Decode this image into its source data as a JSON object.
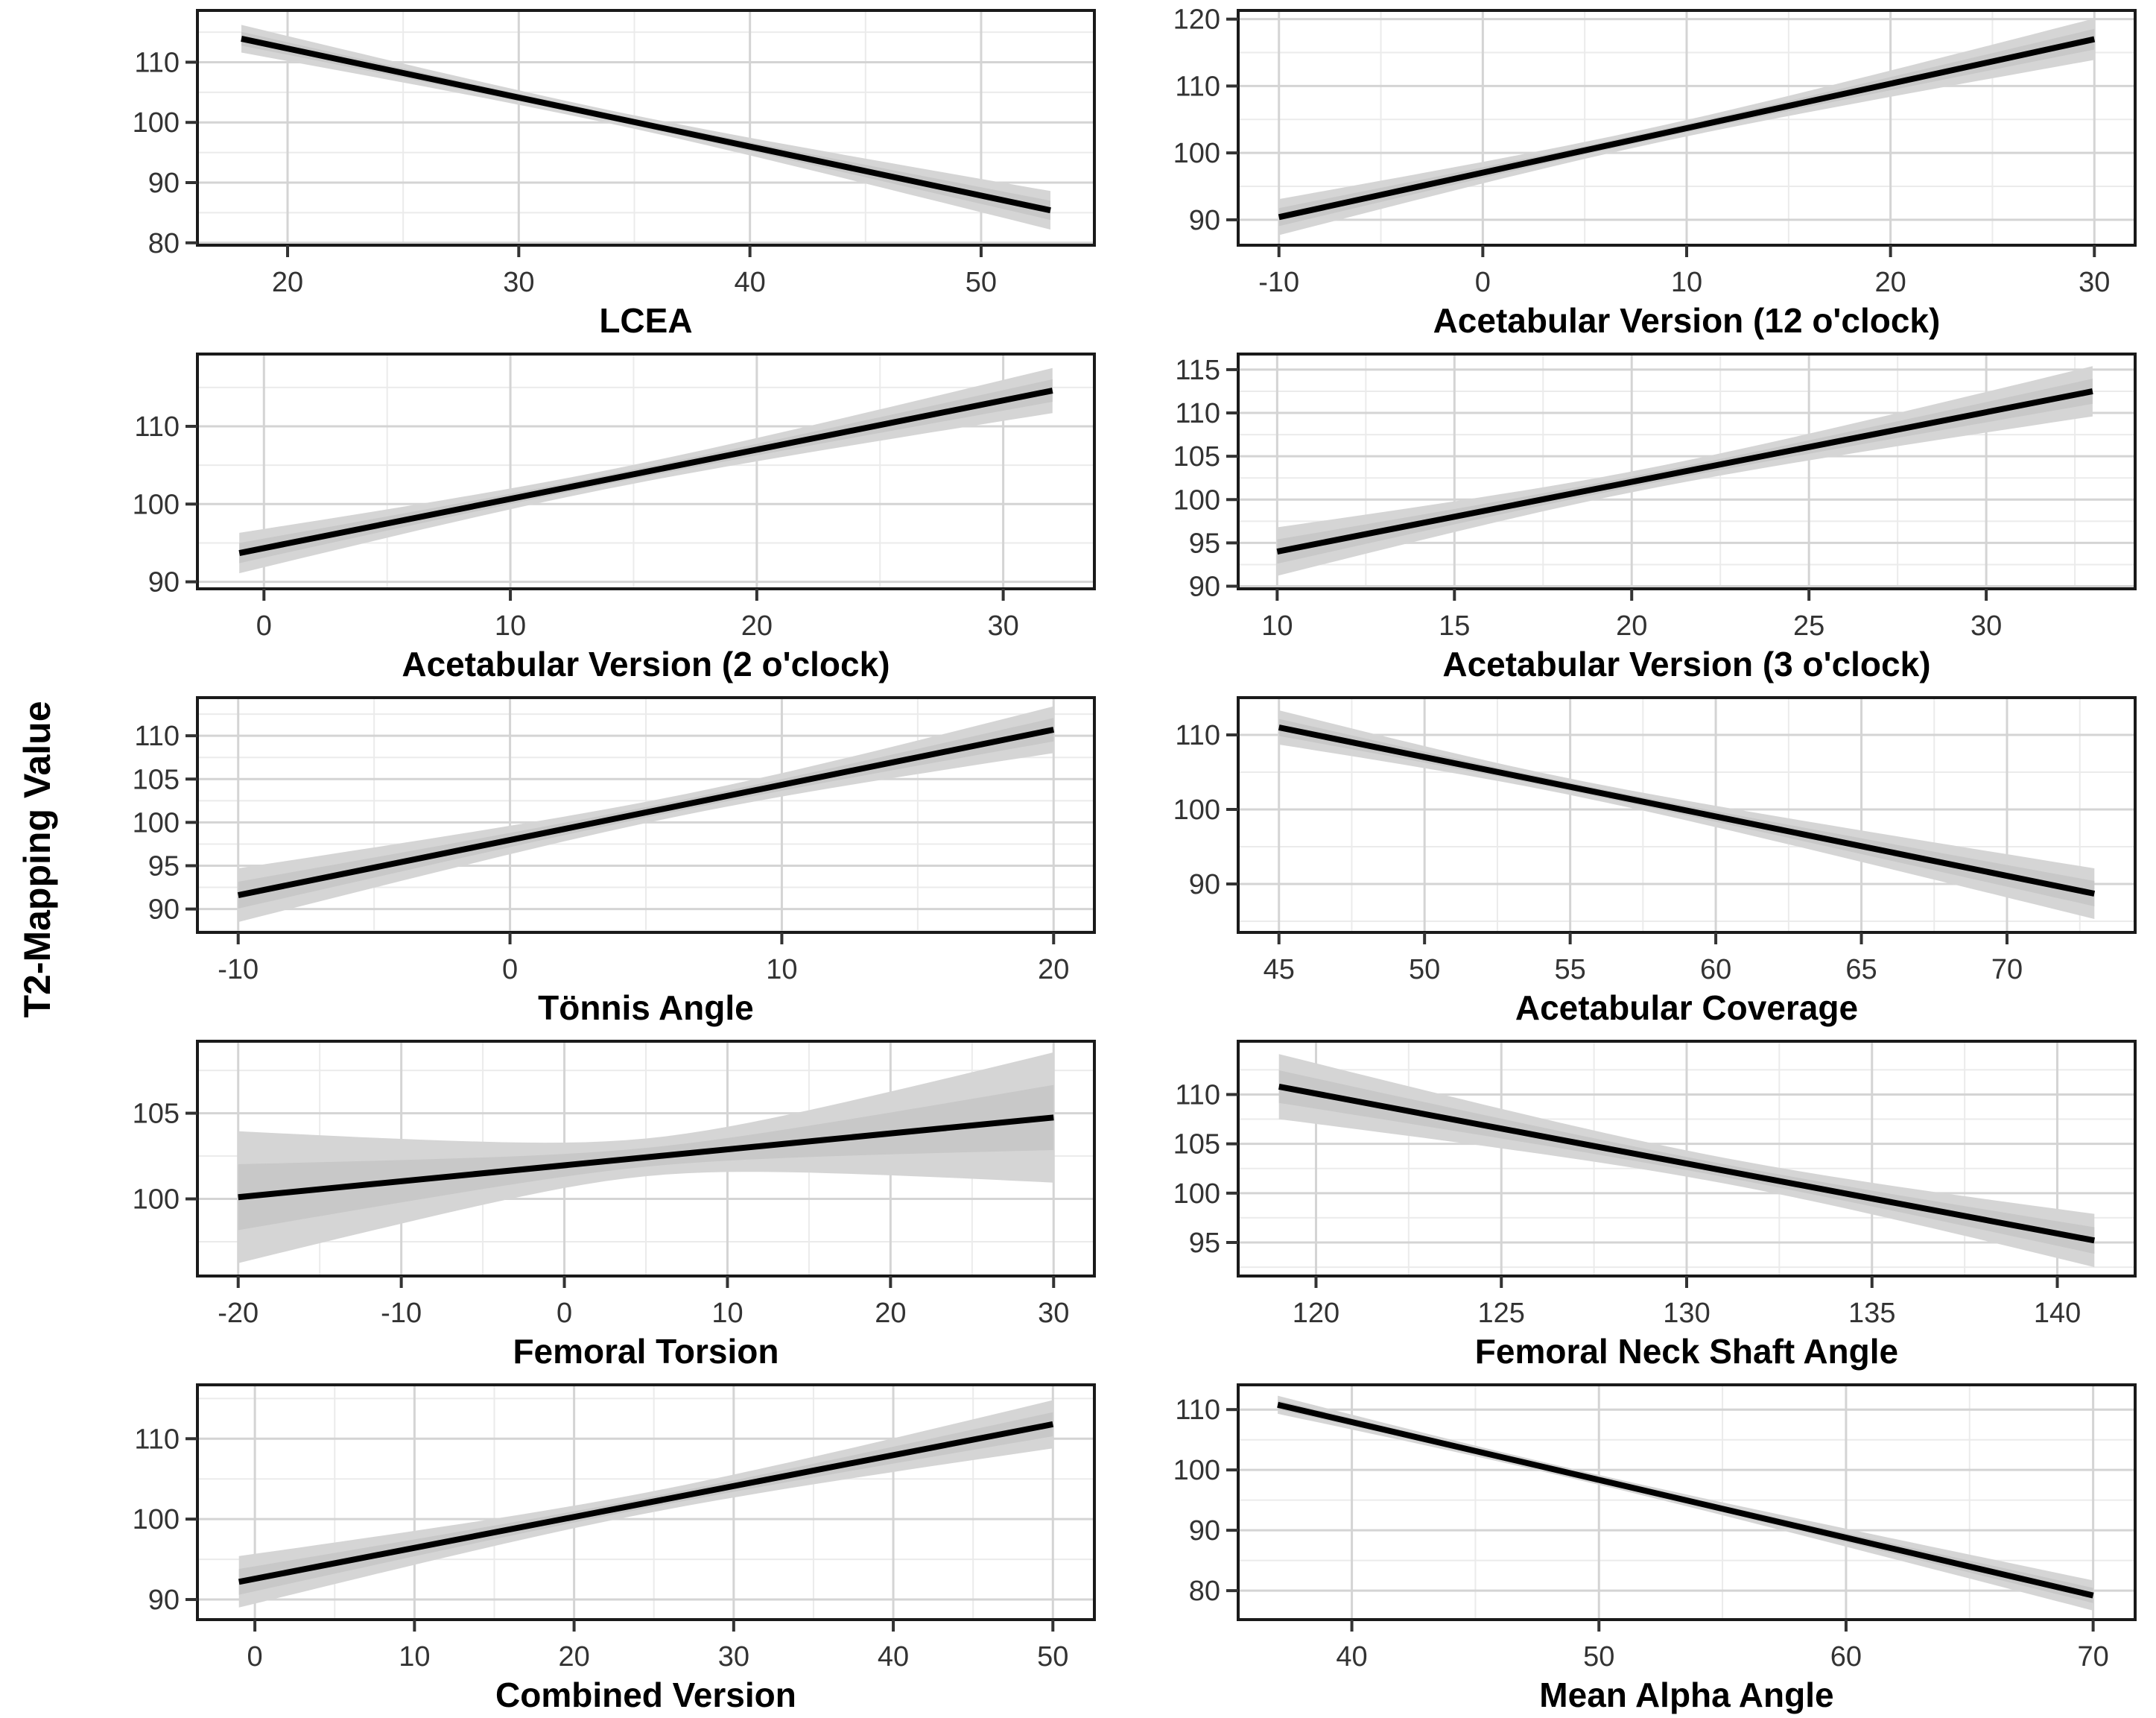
{
  "ylabel": "T2-Mapping Value",
  "colors": {
    "line": "#000000",
    "ribbon_outer": "#d5d5d5",
    "ribbon_inner": "#c8c8c8",
    "grid_major": "#d4d4d4",
    "grid_minor": "#ebebeb",
    "panel_border": "#1a1a1a",
    "tick": "#333333",
    "tick_label": "#333333",
    "background": "#ffffff"
  },
  "chart_data": [
    {
      "type": "line",
      "xlabel": "LCEA",
      "x_ticks": [
        20,
        30,
        40,
        50
      ],
      "y_ticks": [
        80,
        90,
        100,
        110
      ],
      "xlim": [
        16.1,
        54.9
      ],
      "ylim": [
        79.6,
        118.6
      ],
      "line": {
        "x": [
          18,
          53
        ],
        "y": [
          113.9,
          85.4
        ]
      },
      "ci": {
        "start": 2.3,
        "mid": 1.1,
        "end": 3.2,
        "pinch": 0.45
      },
      "grid": true,
      "legend": "none"
    },
    {
      "type": "line",
      "xlabel": "Acetabular Version (12 o'clock)",
      "x_ticks": [
        -10,
        0,
        10,
        20,
        30
      ],
      "y_ticks": [
        90,
        100,
        110,
        120
      ],
      "xlim": [
        -12,
        32
      ],
      "ylim": [
        86.2,
        121.3
      ],
      "line": {
        "x": [
          -10,
          30
        ],
        "y": [
          90.4,
          117.0
        ]
      },
      "ci": {
        "start": 2.7,
        "mid": 1.2,
        "end": 3.1,
        "pinch": 0.45
      },
      "grid": true,
      "legend": "none"
    },
    {
      "type": "line",
      "xlabel": "Acetabular Version (2 o'clock)",
      "x_ticks": [
        0,
        10,
        20,
        30
      ],
      "y_ticks": [
        90,
        100,
        110
      ],
      "xlim": [
        -2.7,
        33.7
      ],
      "ylim": [
        89.1,
        119.3
      ],
      "line": {
        "x": [
          -1,
          32
        ],
        "y": [
          93.7,
          114.6
        ]
      },
      "ci": {
        "start": 2.6,
        "mid": 1.2,
        "end": 2.9,
        "pinch": 0.45
      },
      "grid": true,
      "legend": "none"
    },
    {
      "type": "line",
      "xlabel": "Acetabular Version (3 o'clock)",
      "x_ticks": [
        10,
        15,
        20,
        25,
        30
      ],
      "y_ticks": [
        90,
        95,
        100,
        105,
        110,
        115
      ],
      "xlim": [
        8.9,
        34.2
      ],
      "ylim": [
        89.7,
        116.8
      ],
      "line": {
        "x": [
          10,
          33
        ],
        "y": [
          94.0,
          112.5
        ]
      },
      "ci": {
        "start": 2.8,
        "mid": 1.2,
        "end": 2.9,
        "pinch": 0.45
      },
      "grid": true,
      "legend": "none"
    },
    {
      "type": "line",
      "xlabel": "Tönnis Angle",
      "x_ticks": [
        -10,
        0,
        10,
        20
      ],
      "y_ticks": [
        90,
        95,
        100,
        105,
        110
      ],
      "xlim": [
        -11.5,
        21.5
      ],
      "ylim": [
        87.3,
        114.4
      ],
      "line": {
        "x": [
          -10,
          20
        ],
        "y": [
          91.6,
          110.7
        ]
      },
      "ci": {
        "start": 3.1,
        "mid": 1.2,
        "end": 2.7,
        "pinch": 0.55
      },
      "grid": true,
      "legend": "none"
    },
    {
      "type": "line",
      "xlabel": "Acetabular Coverage",
      "x_ticks": [
        45,
        50,
        55,
        60,
        65,
        70
      ],
      "y_ticks": [
        90,
        100,
        110
      ],
      "xlim": [
        43.6,
        74.4
      ],
      "ylim": [
        83.5,
        115.0
      ],
      "line": {
        "x": [
          45,
          73
        ],
        "y": [
          111.0,
          88.7
        ]
      },
      "ci": {
        "start": 2.3,
        "mid": 1.1,
        "end": 3.4,
        "pinch": 0.35
      },
      "grid": true,
      "legend": "none"
    },
    {
      "type": "line",
      "xlabel": "Femoral Torsion",
      "x_ticks": [
        -20,
        -10,
        0,
        10,
        20,
        30
      ],
      "y_ticks": [
        100,
        105
      ],
      "xlim": [
        -22.5,
        32.5
      ],
      "ylim": [
        95.5,
        109.2
      ],
      "line": {
        "x": [
          -20,
          30
        ],
        "y": [
          100.1,
          104.75
        ]
      },
      "ci": {
        "start": 3.85,
        "mid": 1.1,
        "end": 3.8,
        "pinch": 0.5
      },
      "grid": true,
      "legend": "none"
    },
    {
      "type": "line",
      "xlabel": "Femoral Neck Shaft Angle",
      "x_ticks": [
        120,
        125,
        130,
        135,
        140
      ],
      "y_ticks": [
        95,
        100,
        105,
        110
      ],
      "xlim": [
        117.9,
        142.1
      ],
      "ylim": [
        91.6,
        115.4
      ],
      "line": {
        "x": [
          119,
          141
        ],
        "y": [
          110.8,
          95.2
        ]
      },
      "ci": {
        "start": 3.3,
        "mid": 1.3,
        "end": 2.7,
        "pinch": 0.55
      },
      "grid": true,
      "legend": "none"
    },
    {
      "type": "line",
      "xlabel": "Combined Version",
      "x_ticks": [
        0,
        10,
        20,
        30,
        40,
        50
      ],
      "y_ticks": [
        90,
        100,
        110
      ],
      "xlim": [
        -3.6,
        52.6
      ],
      "ylim": [
        87.5,
        116.7
      ],
      "line": {
        "x": [
          -1,
          50
        ],
        "y": [
          92.2,
          111.8
        ]
      },
      "ci": {
        "start": 3.2,
        "mid": 1.3,
        "end": 3.0,
        "pinch": 0.5
      },
      "grid": true,
      "legend": "none"
    },
    {
      "type": "line",
      "xlabel": "Mean Alpha Angle",
      "x_ticks": [
        40,
        50,
        60,
        70
      ],
      "y_ticks": [
        80,
        90,
        100,
        110
      ],
      "xlim": [
        35.4,
        71.7
      ],
      "ylim": [
        75.2,
        114.1
      ],
      "line": {
        "x": [
          37,
          70
        ],
        "y": [
          110.8,
          79.2
        ]
      },
      "ci": {
        "start": 1.5,
        "mid": 0.8,
        "end": 2.5,
        "pinch": 0.35
      },
      "grid": true,
      "legend": "none"
    }
  ],
  "layout": {
    "rows": 5,
    "cols": 2,
    "shared_y_label": true
  }
}
